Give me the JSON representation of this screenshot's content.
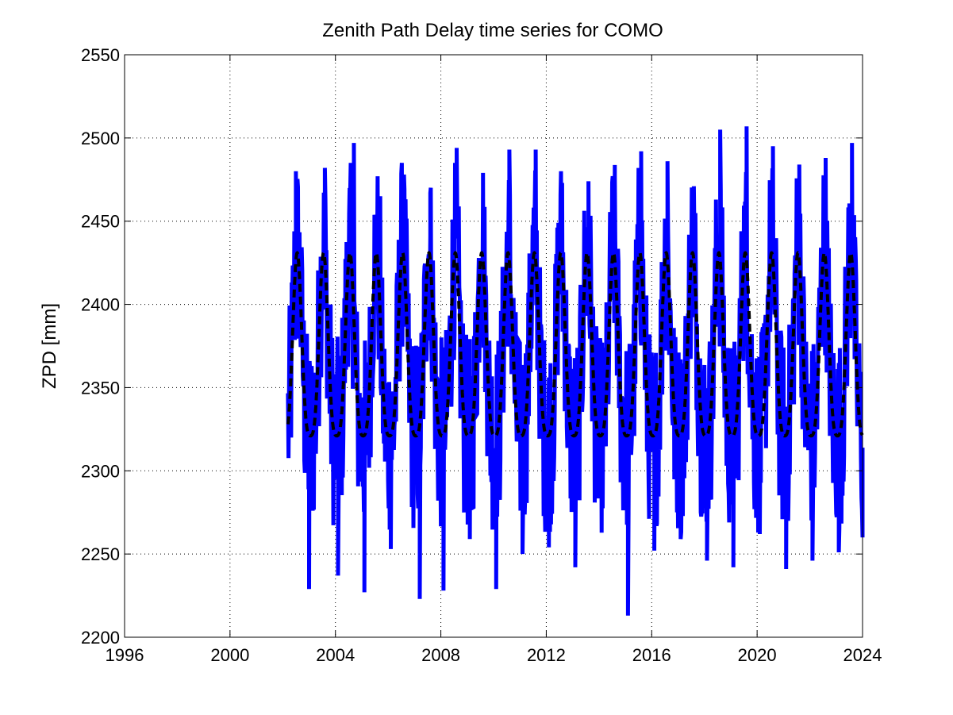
{
  "chart_data": {
    "type": "line",
    "title": "Zenith Path Delay time series for COMO",
    "xlabel": "",
    "ylabel": "ZPD [mm]",
    "xlim": [
      1996,
      2024
    ],
    "ylim": [
      2200,
      2550
    ],
    "x_ticks": [
      1996,
      2000,
      2004,
      2008,
      2012,
      2016,
      2020,
      2024
    ],
    "y_ticks": [
      2200,
      2250,
      2300,
      2350,
      2400,
      2450,
      2500,
      2550
    ],
    "grid": true,
    "series": [
      {
        "style": "solid",
        "color": "#0000ff",
        "x_start": 2002.2,
        "x_end": 2024.0,
        "typical_range": [
          2240,
          2500
        ],
        "extremes": {
          "min": 2213,
          "max": 2507
        },
        "annual_peaks": [
          {
            "x": 2002.5,
            "y": 2480
          },
          {
            "x": 2003.6,
            "y": 2482
          },
          {
            "x": 2004.7,
            "y": 2497
          },
          {
            "x": 2005.7,
            "y": 2465
          },
          {
            "x": 2006.6,
            "y": 2478
          },
          {
            "x": 2007.6,
            "y": 2467
          },
          {
            "x": 2008.6,
            "y": 2494
          },
          {
            "x": 2009.6,
            "y": 2479
          },
          {
            "x": 2010.6,
            "y": 2493
          },
          {
            "x": 2011.6,
            "y": 2493
          },
          {
            "x": 2012.6,
            "y": 2473
          },
          {
            "x": 2013.6,
            "y": 2474
          },
          {
            "x": 2014.6,
            "y": 2478
          },
          {
            "x": 2015.6,
            "y": 2492
          },
          {
            "x": 2016.6,
            "y": 2486
          },
          {
            "x": 2017.6,
            "y": 2471
          },
          {
            "x": 2018.6,
            "y": 2505
          },
          {
            "x": 2019.6,
            "y": 2507
          },
          {
            "x": 2020.6,
            "y": 2495
          },
          {
            "x": 2021.6,
            "y": 2484
          },
          {
            "x": 2022.6,
            "y": 2488
          },
          {
            "x": 2023.6,
            "y": 2497
          }
        ],
        "annual_troughs": [
          {
            "x": 2003.0,
            "y": 2229
          },
          {
            "x": 2004.1,
            "y": 2237
          },
          {
            "x": 2005.1,
            "y": 2227
          },
          {
            "x": 2006.1,
            "y": 2253
          },
          {
            "x": 2007.2,
            "y": 2223
          },
          {
            "x": 2008.1,
            "y": 2228
          },
          {
            "x": 2009.1,
            "y": 2259
          },
          {
            "x": 2010.1,
            "y": 2229
          },
          {
            "x": 2011.1,
            "y": 2250
          },
          {
            "x": 2012.1,
            "y": 2254
          },
          {
            "x": 2013.1,
            "y": 2242
          },
          {
            "x": 2014.1,
            "y": 2264
          },
          {
            "x": 2015.1,
            "y": 2213
          },
          {
            "x": 2016.1,
            "y": 2252
          },
          {
            "x": 2017.1,
            "y": 2259
          },
          {
            "x": 2018.1,
            "y": 2246
          },
          {
            "x": 2019.1,
            "y": 2242
          },
          {
            "x": 2020.1,
            "y": 2262
          },
          {
            "x": 2021.1,
            "y": 2241
          },
          {
            "x": 2022.1,
            "y": 2246
          },
          {
            "x": 2023.1,
            "y": 2251
          },
          {
            "x": 2024.0,
            "y": 2260
          }
        ]
      },
      {
        "style": "dashed",
        "color": "#000000",
        "x_start": 2002.2,
        "x_end": 2024.0,
        "mean": 2364,
        "amplitude": 55,
        "period_years": 1,
        "peak_phase_year_fraction": 0.55,
        "semiannual_amplitude": 12
      }
    ]
  }
}
